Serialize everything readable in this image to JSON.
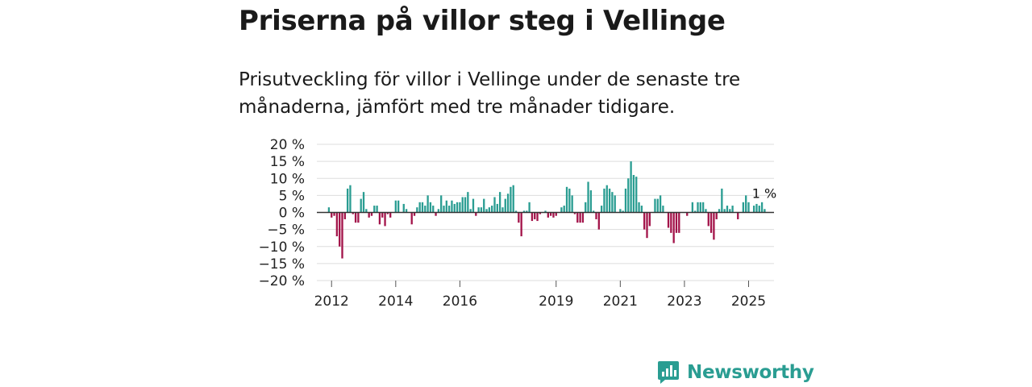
{
  "title": "Priserna på villor steg i Vellinge",
  "subtitle": "Prisutveckling för villor i Vellinge under de senaste tre månaderna, jämfört med tre månader tidigare.",
  "brand": {
    "name": "Newsworthy",
    "color": "#2a9d92",
    "icon": "newsworthy-logo-icon"
  },
  "colors": {
    "positive": "#2a9d92",
    "negative": "#a3144a",
    "grid": "#dddddd",
    "zero_line": "#333333"
  },
  "chart_data": {
    "type": "bar",
    "title": "Priserna på villor steg i Vellinge",
    "xlabel": "",
    "ylabel": "",
    "unit": "%",
    "ylim": [
      -20,
      20
    ],
    "yticks": [
      20,
      15,
      10,
      5,
      0,
      -5,
      -10,
      -15,
      -20
    ],
    "ytick_labels": [
      "20 %",
      "15 %",
      "10 %",
      "5 %",
      "0 %",
      "−5 %",
      "−10 %",
      "−15 %",
      "−20 %"
    ],
    "x_start": "2011-08",
    "x_end": "2025-10",
    "xticks": [
      {
        "year": 2012,
        "label": "2012"
      },
      {
        "year": 2014,
        "label": "2014"
      },
      {
        "year": 2016,
        "label": "2016"
      },
      {
        "year": 2019,
        "label": "2019"
      },
      {
        "year": 2021,
        "label": "2021"
      },
      {
        "year": 2023,
        "label": "2023"
      },
      {
        "year": 2025,
        "label": "2025"
      }
    ],
    "last_value_label": "1 %",
    "segments": [
      {
        "start": "2011-08",
        "values": [
          0,
          0,
          0,
          0,
          1.5,
          -1.5,
          -1,
          -7,
          -10,
          -13.5,
          -2,
          7,
          8,
          -0.5,
          -3,
          -3,
          4,
          6,
          1,
          -1.5,
          -1,
          2,
          2,
          -3.5,
          -1.5,
          -4,
          -0.5,
          -1.5,
          0,
          3.5,
          3.5,
          0,
          2.5,
          1,
          0,
          -3.5,
          -1,
          1.5,
          3,
          3,
          2,
          5,
          3,
          2,
          -1,
          1,
          5,
          2,
          3.5,
          2,
          3.5,
          2.5,
          3,
          3,
          4.5,
          4.5,
          6,
          1,
          4,
          -1,
          1.5,
          1.5,
          4,
          1,
          1.5,
          2,
          4.5,
          2.5,
          6,
          1.5,
          4,
          5.5,
          7.5,
          8,
          0.5,
          -3,
          -7,
          0.5,
          0.5,
          3,
          -2.5,
          -2,
          -2.5,
          -0.5,
          0,
          0.5,
          -1.5,
          -1,
          -1.5,
          -1,
          0,
          1.5,
          2,
          7.5,
          7,
          5,
          -0.5,
          -3,
          -3,
          -3,
          3,
          9,
          6.5,
          0.5,
          -2,
          -5,
          2,
          7,
          8,
          7,
          6,
          5,
          0,
          1,
          0.5,
          7,
          10,
          15,
          11,
          10.5,
          3,
          2,
          -5,
          -7.5,
          -4,
          0,
          4,
          4,
          5,
          2,
          0,
          -4.5,
          -6,
          -9,
          -6,
          -6,
          0,
          0,
          -1,
          0,
          3,
          0.5,
          3,
          3,
          3,
          1,
          -4,
          -6,
          -8,
          -2,
          1,
          7,
          1,
          2,
          1,
          2,
          0,
          -2,
          0,
          3,
          5,
          3,
          0,
          2,
          2.5,
          2,
          3,
          1
        ]
      }
    ]
  }
}
